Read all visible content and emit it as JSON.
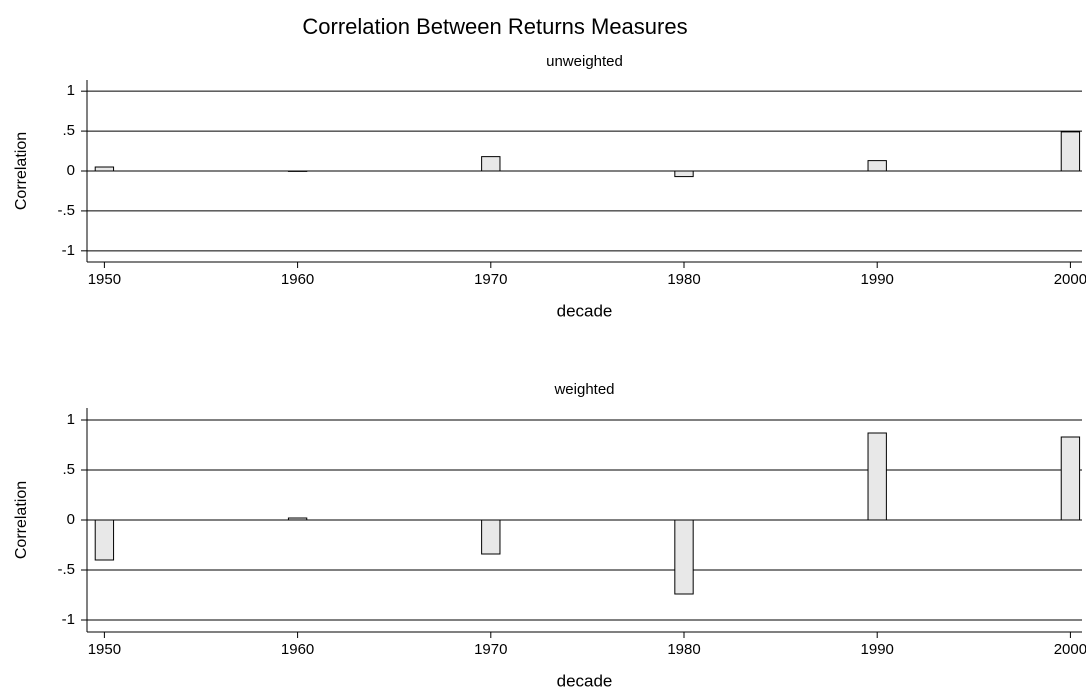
{
  "title": "Correlation Between Returns Measures",
  "chart_data": [
    {
      "type": "bar",
      "title": "unweighted",
      "x_label": "decade",
      "y_label": "Correlation",
      "x": [
        1950,
        1960,
        1970,
        1980,
        1990,
        2000
      ],
      "values": [
        0.05,
        -0.005,
        0.18,
        -0.07,
        0.13,
        0.49
      ],
      "color": "#e8e8e8",
      "xlim": [
        1949.1,
        2000.6
      ],
      "ylim": [
        -1.14,
        1.14
      ],
      "xticks": [
        1950,
        1960,
        1970,
        1980,
        1990,
        2000
      ],
      "yticks": [
        -1,
        {
          "value": -0.5,
          "label": "-.5"
        },
        0,
        {
          "value": 0.5,
          "label": ".5"
        },
        1
      ],
      "grid": true
    },
    {
      "type": "bar",
      "title": "weighted",
      "x_label": "decade",
      "y_label": "Correlation",
      "x": [
        1950,
        1960,
        1970,
        1980,
        1990,
        2000
      ],
      "values": [
        -0.4,
        0.02,
        -0.34,
        -0.74,
        0.87,
        0.83
      ],
      "color": "#e8e8e8",
      "xlim": [
        1949.1,
        2000.6
      ],
      "ylim": [
        -1.12,
        1.12
      ],
      "xticks": [
        1950,
        1960,
        1970,
        1980,
        1990,
        2000
      ],
      "yticks": [
        -1,
        {
          "value": -0.5,
          "label": "-.5"
        },
        0,
        {
          "value": 0.5,
          "label": ".5"
        },
        1
      ],
      "grid": true
    }
  ]
}
